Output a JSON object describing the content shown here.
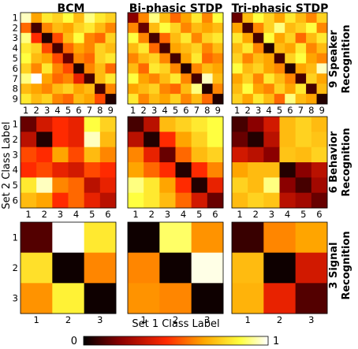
{
  "figure": {
    "xlabel": "Set 1 Class Label",
    "ylabel": "Set 2 Class Label",
    "colorbar": {
      "min_label": "0",
      "max_label": "1",
      "colormap": "hot",
      "stops": [
        "#000000",
        "#8b0000",
        "#ff2a00",
        "#ffa500",
        "#ffff40",
        "#ffffff"
      ]
    }
  },
  "chart_data": [
    {
      "type": "heatmap",
      "method": "BCM",
      "task": "9 Speaker Recognition",
      "column_title": "BCM",
      "row_title": [
        "9 Speaker",
        "Recognition"
      ],
      "labels": [
        "1",
        "2",
        "3",
        "4",
        "5",
        "6",
        "7",
        "8",
        "9"
      ],
      "values": [
        [
          0.95,
          0.65,
          0.8,
          0.75,
          0.85,
          0.7,
          0.9,
          0.8,
          0.75
        ],
        [
          0.55,
          0.1,
          0.6,
          0.7,
          0.65,
          0.75,
          0.8,
          0.7,
          0.6
        ],
        [
          0.9,
          0.45,
          0.05,
          0.5,
          0.7,
          0.85,
          0.6,
          0.55,
          0.75
        ],
        [
          0.8,
          0.75,
          0.5,
          0.1,
          0.55,
          0.65,
          0.6,
          0.75,
          0.7
        ],
        [
          0.85,
          0.7,
          0.65,
          0.5,
          0.15,
          0.6,
          0.55,
          0.75,
          0.8
        ],
        [
          0.75,
          0.6,
          0.8,
          0.6,
          0.5,
          0.05,
          0.6,
          0.7,
          0.55
        ],
        [
          0.9,
          1.0,
          0.65,
          0.55,
          0.6,
          0.4,
          0.1,
          0.7,
          0.8
        ],
        [
          0.7,
          0.65,
          0.6,
          0.7,
          0.75,
          0.65,
          0.7,
          0.1,
          0.6
        ],
        [
          0.8,
          0.7,
          0.75,
          0.6,
          0.55,
          0.7,
          0.65,
          0.5,
          0.05
        ]
      ]
    },
    {
      "type": "heatmap",
      "method": "Bi-phasic STDP",
      "task": "9 Speaker Recognition",
      "column_title": "Bi-phasic STDP",
      "row_title": [
        "9 Speaker",
        "Recognition"
      ],
      "labels": [
        "1",
        "2",
        "3",
        "4",
        "5",
        "6",
        "7",
        "8",
        "9"
      ],
      "values": [
        [
          0.2,
          0.6,
          0.9,
          0.7,
          0.55,
          0.65,
          0.8,
          0.6,
          0.85
        ],
        [
          0.6,
          0.15,
          0.7,
          0.85,
          0.75,
          0.6,
          0.7,
          0.65,
          0.7
        ],
        [
          0.85,
          0.6,
          0.1,
          0.55,
          0.7,
          0.8,
          0.6,
          0.75,
          0.8
        ],
        [
          0.7,
          0.8,
          0.55,
          0.1,
          0.65,
          0.7,
          0.75,
          0.6,
          0.7
        ],
        [
          0.6,
          0.7,
          0.75,
          0.6,
          0.1,
          0.65,
          0.8,
          0.55,
          0.6
        ],
        [
          0.7,
          0.55,
          0.8,
          0.75,
          0.6,
          0.05,
          0.6,
          0.7,
          0.65
        ],
        [
          0.85,
          0.65,
          0.6,
          0.7,
          0.8,
          0.6,
          0.1,
          0.95,
          0.7
        ],
        [
          0.65,
          0.7,
          0.75,
          0.6,
          0.55,
          0.7,
          0.9,
          0.05,
          0.6
        ],
        [
          0.8,
          0.6,
          0.7,
          0.65,
          0.75,
          0.6,
          0.7,
          0.55,
          0.05
        ]
      ]
    },
    {
      "type": "heatmap",
      "method": "Tri-phasic STDP",
      "task": "9 Speaker Recognition",
      "column_title": "Tri-phasic STDP",
      "row_title": [
        "9 Speaker",
        "Recognition"
      ],
      "labels": [
        "1",
        "2",
        "3",
        "4",
        "5",
        "6",
        "7",
        "8",
        "9"
      ],
      "values": [
        [
          0.15,
          0.7,
          0.85,
          0.75,
          0.65,
          0.8,
          0.7,
          0.6,
          0.75
        ],
        [
          0.65,
          0.1,
          0.6,
          0.75,
          0.9,
          0.7,
          0.75,
          0.85,
          0.6
        ],
        [
          0.8,
          0.65,
          0.1,
          0.85,
          0.65,
          0.75,
          0.55,
          0.7,
          0.8
        ],
        [
          0.7,
          0.8,
          0.6,
          0.05,
          0.7,
          0.65,
          0.8,
          0.6,
          0.7
        ],
        [
          0.75,
          0.6,
          0.7,
          0.65,
          0.1,
          0.75,
          0.85,
          0.65,
          0.6
        ],
        [
          0.85,
          0.7,
          0.75,
          0.65,
          0.6,
          0.05,
          0.65,
          0.7,
          0.95
        ],
        [
          0.65,
          0.75,
          0.6,
          0.8,
          0.7,
          0.6,
          0.1,
          0.75,
          0.65
        ],
        [
          0.7,
          0.85,
          0.65,
          0.6,
          0.75,
          0.65,
          0.8,
          0.1,
          0.7
        ],
        [
          0.75,
          0.65,
          0.8,
          0.7,
          0.55,
          0.9,
          0.7,
          0.65,
          0.05
        ]
      ]
    },
    {
      "type": "heatmap",
      "method": "BCM",
      "task": "6 Behavior Recognition",
      "column_title": "",
      "row_title": [
        "6 Behavior",
        "Recognition"
      ],
      "labels": [
        "1",
        "2",
        "3",
        "4",
        "5",
        "6"
      ],
      "values": [
        [
          0.15,
          0.35,
          0.45,
          0.4,
          0.85,
          0.75
        ],
        [
          0.3,
          0.05,
          0.45,
          0.4,
          0.95,
          0.7
        ],
        [
          0.5,
          0.45,
          0.65,
          0.5,
          0.7,
          0.6
        ],
        [
          0.45,
          0.5,
          0.4,
          0.35,
          0.5,
          0.45
        ],
        [
          0.8,
          0.95,
          0.6,
          0.55,
          0.3,
          0.4
        ],
        [
          0.7,
          0.65,
          0.45,
          0.55,
          0.4,
          0.3
        ]
      ]
    },
    {
      "type": "heatmap",
      "method": "Bi-phasic STDP",
      "task": "6 Behavior Recognition",
      "column_title": "",
      "row_title": [
        "6 Behavior",
        "Recognition"
      ],
      "labels": [
        "1",
        "2",
        "3",
        "4",
        "5",
        "6"
      ],
      "values": [
        [
          0.1,
          0.3,
          0.7,
          0.75,
          0.8,
          0.85
        ],
        [
          0.3,
          0.05,
          0.45,
          0.65,
          0.75,
          0.85
        ],
        [
          0.6,
          0.4,
          0.15,
          0.55,
          0.7,
          0.75
        ],
        [
          0.65,
          0.55,
          0.45,
          0.05,
          0.45,
          0.6
        ],
        [
          0.9,
          0.8,
          0.65,
          0.45,
          0.05,
          0.4
        ],
        [
          0.85,
          0.8,
          0.7,
          0.55,
          0.35,
          0.15
        ]
      ]
    },
    {
      "type": "heatmap",
      "method": "Tri-phasic STDP",
      "task": "6 Behavior Recognition",
      "column_title": "",
      "row_title": [
        "6 Behavior",
        "Recognition"
      ],
      "labels": [
        "1",
        "2",
        "3",
        "4",
        "5",
        "6"
      ],
      "values": [
        [
          0.1,
          0.2,
          0.35,
          0.7,
          0.75,
          0.7
        ],
        [
          0.15,
          0.05,
          0.3,
          0.7,
          0.75,
          0.72
        ],
        [
          0.35,
          0.3,
          0.2,
          0.72,
          0.7,
          0.75
        ],
        [
          0.65,
          0.7,
          0.7,
          0.05,
          0.2,
          0.3
        ],
        [
          0.75,
          0.7,
          0.9,
          0.2,
          0.1,
          0.25
        ],
        [
          0.7,
          0.75,
          0.72,
          0.3,
          0.25,
          0.15
        ]
      ]
    },
    {
      "type": "heatmap",
      "method": "BCM",
      "task": "3 Signal Recognition",
      "column_title": "",
      "row_title": [
        "3 Signal",
        "Recognition"
      ],
      "labels": [
        "1",
        "2",
        "3"
      ],
      "values": [
        [
          0.12,
          1.0,
          0.8
        ],
        [
          0.78,
          0.02,
          0.6
        ],
        [
          0.62,
          0.82,
          0.02
        ]
      ]
    },
    {
      "type": "heatmap",
      "method": "Bi-phasic STDP",
      "task": "3 Signal Recognition",
      "column_title": "",
      "row_title": [
        "3 Signal",
        "Recognition"
      ],
      "labels": [
        "1",
        "2",
        "3"
      ],
      "values": [
        [
          0.02,
          0.88,
          0.62
        ],
        [
          0.6,
          0.02,
          0.98
        ],
        [
          0.62,
          0.6,
          0.02
        ]
      ]
    },
    {
      "type": "heatmap",
      "method": "Tri-phasic STDP",
      "task": "3 Signal Recognition",
      "column_title": "",
      "row_title": [
        "3 Signal",
        "Recognition"
      ],
      "labels": [
        "1",
        "2",
        "3"
      ],
      "values": [
        [
          0.08,
          0.6,
          0.65
        ],
        [
          0.7,
          0.02,
          0.35
        ],
        [
          0.68,
          0.4,
          0.12
        ]
      ]
    }
  ]
}
